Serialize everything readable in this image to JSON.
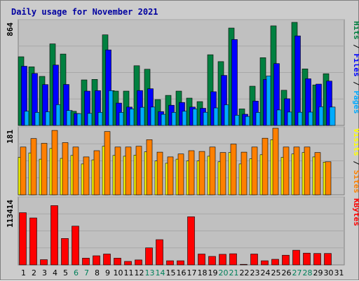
{
  "title": "Daily usage for November 2021",
  "chart_data": {
    "type": "bar",
    "title": "Daily usage for November 2021",
    "categories": [
      "1",
      "2",
      "3",
      "4",
      "5",
      "6",
      "7",
      "8",
      "9",
      "10",
      "11",
      "12",
      "13",
      "14",
      "15",
      "16",
      "17",
      "18",
      "19",
      "20",
      "21",
      "22",
      "23",
      "24",
      "25",
      "26",
      "27",
      "28",
      "29",
      "30",
      "31"
    ],
    "weekend_days": [
      "6",
      "7",
      "13",
      "14",
      "20",
      "21",
      "27",
      "28"
    ],
    "panels": [
      {
        "id": "hits",
        "ymax": 864,
        "ymax_label": "864",
        "legend": [
          {
            "label": "Pages",
            "color": "#00aaff"
          },
          {
            "label": "Files",
            "color": "#0000ff"
          },
          {
            "label": "Hits",
            "color": "#008040"
          }
        ],
        "series": [
          {
            "name": "Hits",
            "color": "#008040",
            "values": [
              568,
              485,
              406,
              675,
              591,
              117,
              377,
              381,
              750,
              284,
              284,
              494,
              465,
              214,
              249,
              284,
              226,
              197,
              585,
              528,
              806,
              137,
              325,
              561,
              824,
              291,
              853,
              468,
              335,
              428,
              0
            ]
          },
          {
            "name": "Files",
            "color": "#0000ff",
            "values": [
              490,
              430,
              338,
              500,
              339,
              99,
              284,
              288,
              625,
              185,
              152,
              289,
              304,
              115,
              167,
              190,
              152,
              142,
              279,
              414,
              711,
              93,
              202,
              381,
              512,
              221,
              741,
              386,
              342,
              367,
              0
            ]
          },
          {
            "name": "Pages",
            "color": "#00aaff",
            "values": [
              118,
              108,
              113,
              172,
              124,
              98,
              100,
              108,
              288,
              108,
              137,
              150,
              152,
              92,
              108,
              118,
              137,
              109,
              145,
              171,
              84,
              75,
              108,
              410,
              128,
              111,
              109,
              110,
              155,
              152,
              0
            ]
          }
        ]
      },
      {
        "id": "visits",
        "ymax": 181,
        "ymax_label": "181",
        "legend": [
          {
            "label": "Sites",
            "color": "#ff8000"
          },
          {
            "label": "Visits",
            "color": "#ffff00"
          }
        ],
        "series": [
          {
            "name": "Visits",
            "color": "#ff8000",
            "values": [
              130,
              153,
              140,
              175,
              142,
              130,
              103,
              120,
              172,
              130,
              130,
              132,
              150,
              116,
              103,
              111,
              120,
              118,
              130,
              115,
              138,
              116,
              130,
              154,
              181,
              130,
              130,
              130,
              115,
              90,
              0
            ]
          },
          {
            "name": "Sites",
            "color": "#ffff00",
            "values": [
              102,
              114,
              97,
              126,
              99,
              107,
              84,
              95,
              132,
              107,
              105,
              108,
              117,
              92,
              86,
              97,
              92,
              92,
              105,
              90,
              115,
              84,
              98,
              109,
              150,
              102,
              111,
              115,
              103,
              89,
              0
            ]
          }
        ]
      },
      {
        "id": "kbytes",
        "ymax": 113414,
        "ymax_label": "113414",
        "legend": [
          {
            "label": "KBytes",
            "color": "#ff0000"
          }
        ],
        "series": [
          {
            "name": "KBytes",
            "color": "#ff0000",
            "values": [
              89000,
              80000,
              9000,
              101000,
              45000,
              66000,
              11500,
              15500,
              18500,
              11500,
              6000,
              8500,
              29000,
              43000,
              7000,
              7000,
              82000,
              18500,
              14500,
              18000,
              19000,
              1000,
              18500,
              7000,
              9500,
              16500,
              25000,
              20000,
              19500,
              19500,
              0
            ]
          }
        ]
      }
    ]
  }
}
